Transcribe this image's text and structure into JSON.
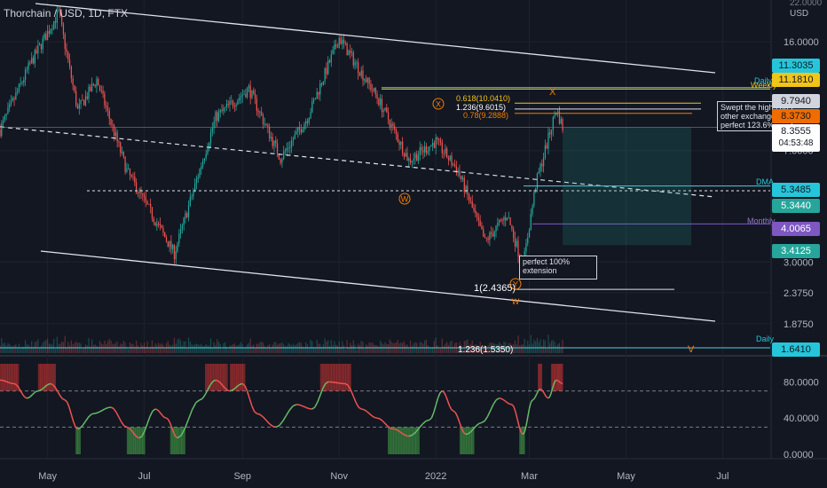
{
  "header": {
    "symbol_line": "Thorchain / USD, 1D, FTX",
    "currency": "USD",
    "axis_top_partial": "22.0000"
  },
  "colors": {
    "bg": "#131722",
    "up": "#26a69a",
    "down": "#ef5350",
    "channel": "#e0e3eb",
    "cyan": "#4dd0e1",
    "orange": "#f57c00",
    "gold": "#f0c419",
    "purple": "#7e57c2",
    "green_osc": "#43a047",
    "red_osc": "#e53935"
  },
  "annotations": {
    "note_swept": [
      "Swept the highs on",
      "other exchanges,",
      "perfect 123.6%"
    ],
    "note_extension": [
      "perfect 100%",
      "extension"
    ],
    "fib_0618": "0.618(10.0410)",
    "fib_1236_top": "1.236(9.6015)",
    "fib_078": "0.78(9.2888)",
    "fib_1": "1(2.4365)",
    "fib_1236_bottom": "1.236(1.5350)",
    "level_daily_top": "Daily",
    "level_weekly": "Weekly",
    "level_dma": "DMA",
    "level_monthly": "Monthly",
    "level_daily_bottom": "Daily",
    "wave_x": "X",
    "wave_w": "W",
    "wave_y": "Y",
    "wave_w2": "W",
    "marker_x": "X",
    "marker_v": "V"
  },
  "price_tags": [
    {
      "value": "11.3035",
      "color": "#26c6da",
      "text": "#131722"
    },
    {
      "value": "11.1810",
      "color": "#f0c419",
      "text": "#131722"
    },
    {
      "value": "9.7940",
      "color": "#d1d4dc",
      "text": "#131722"
    },
    {
      "value": "8.3730",
      "color": "#ef6c00",
      "text": "#131722"
    },
    {
      "value": "8.3555",
      "color": "#ffffff",
      "text": "#131722",
      "sub": "04:53:48"
    },
    {
      "value": "5.3485",
      "color": "#26c6da",
      "text": "#131722"
    },
    {
      "value": "5.3440",
      "color": "#26a69a",
      "text": "#ffffff"
    },
    {
      "value": "4.0065",
      "color": "#7e57c2",
      "text": "#ffffff"
    },
    {
      "value": "3.4125",
      "color": "#26a69a",
      "text": "#ffffff"
    },
    {
      "value": "1.6410",
      "color": "#26c6da",
      "text": "#131722"
    }
  ],
  "chart_data": [
    {
      "type": "candlestick",
      "title": "Thorchain / USD, 1D, FTX",
      "y_scale": "log",
      "ylim": [
        1.5,
        22
      ],
      "y_ticks": [
        "16.0000",
        "7.0000",
        "3.0000",
        "2.3750",
        "1.8750"
      ],
      "x_ticks": [
        "May",
        "Jul",
        "Sep",
        "Nov",
        "2022",
        "Mar",
        "May",
        "Jul"
      ],
      "x_range": [
        "2021-04-01",
        "2022-07-31"
      ],
      "price_path_keypoints": [
        {
          "date": "2021-04-01",
          "close": 8.2
        },
        {
          "date": "2021-04-20",
          "close": 13.5
        },
        {
          "date": "2021-05-08",
          "close": 20.0
        },
        {
          "date": "2021-05-20",
          "close": 9.5
        },
        {
          "date": "2021-06-01",
          "close": 12.0
        },
        {
          "date": "2021-06-20",
          "close": 6.0
        },
        {
          "date": "2021-07-20",
          "close": 3.2
        },
        {
          "date": "2021-08-15",
          "close": 9.0
        },
        {
          "date": "2021-09-05",
          "close": 11.2
        },
        {
          "date": "2021-09-25",
          "close": 6.6
        },
        {
          "date": "2021-10-12",
          "close": 9.0
        },
        {
          "date": "2021-11-01",
          "close": 16.5
        },
        {
          "date": "2021-11-25",
          "close": 10.5
        },
        {
          "date": "2021-12-15",
          "close": 6.5
        },
        {
          "date": "2022-01-01",
          "close": 7.5
        },
        {
          "date": "2022-01-15",
          "close": 6.0
        },
        {
          "date": "2022-02-01",
          "close": 3.5
        },
        {
          "date": "2022-02-15",
          "close": 4.3
        },
        {
          "date": "2022-02-25",
          "close": 2.9
        },
        {
          "date": "2022-03-05",
          "close": 5.4
        },
        {
          "date": "2022-03-18",
          "close": 9.6
        },
        {
          "date": "2022-03-22",
          "close": 8.36
        }
      ],
      "horizontal_levels": [
        {
          "name": "Daily",
          "value": 11.3
        },
        {
          "name": "Weekly",
          "value": 11.18
        },
        {
          "name": "fib 0.618",
          "value": 10.041
        },
        {
          "name": "fib 1.236",
          "value": 9.6015
        },
        {
          "name": "fib 0.78",
          "value": 9.2888
        },
        {
          "name": "DMA",
          "value": 5.3485
        },
        {
          "name": "Monthly",
          "value": 4.0065
        },
        {
          "name": "fib 1",
          "value": 2.4365
        },
        {
          "name": "Daily",
          "value": 1.641
        },
        {
          "name": "fib 1.236",
          "value": 1.535
        }
      ]
    },
    {
      "type": "line",
      "name": "oscillator",
      "ylim": [
        0,
        100
      ],
      "y_ticks": [
        "80.0000",
        "40.0000",
        "0.0000"
      ],
      "overbought": 70,
      "oversold": 30,
      "points": [
        {
          "date": "2021-04-01",
          "value": 82
        },
        {
          "date": "2021-04-10",
          "value": 78
        },
        {
          "date": "2021-04-18",
          "value": 62
        },
        {
          "date": "2021-04-25",
          "value": 70
        },
        {
          "date": "2021-05-03",
          "value": 78
        },
        {
          "date": "2021-05-12",
          "value": 60
        },
        {
          "date": "2021-05-20",
          "value": 28
        },
        {
          "date": "2021-05-30",
          "value": 45
        },
        {
          "date": "2021-06-10",
          "value": 52
        },
        {
          "date": "2021-06-20",
          "value": 30
        },
        {
          "date": "2021-06-28",
          "value": 18
        },
        {
          "date": "2021-07-08",
          "value": 50
        },
        {
          "date": "2021-07-15",
          "value": 40
        },
        {
          "date": "2021-07-22",
          "value": 18
        },
        {
          "date": "2021-08-05",
          "value": 60
        },
        {
          "date": "2021-08-15",
          "value": 82
        },
        {
          "date": "2021-08-24",
          "value": 70
        },
        {
          "date": "2021-09-01",
          "value": 78
        },
        {
          "date": "2021-09-10",
          "value": 45
        },
        {
          "date": "2021-09-22",
          "value": 30
        },
        {
          "date": "2021-10-05",
          "value": 55
        },
        {
          "date": "2021-10-15",
          "value": 50
        },
        {
          "date": "2021-10-25",
          "value": 80
        },
        {
          "date": "2021-11-05",
          "value": 78
        },
        {
          "date": "2021-11-15",
          "value": 50
        },
        {
          "date": "2021-11-25",
          "value": 40
        },
        {
          "date": "2021-12-05",
          "value": 28
        },
        {
          "date": "2021-12-15",
          "value": 20
        },
        {
          "date": "2021-12-28",
          "value": 38
        },
        {
          "date": "2022-01-05",
          "value": 70
        },
        {
          "date": "2022-01-12",
          "value": 48
        },
        {
          "date": "2022-01-20",
          "value": 22
        },
        {
          "date": "2022-01-30",
          "value": 35
        },
        {
          "date": "2022-02-10",
          "value": 62
        },
        {
          "date": "2022-02-18",
          "value": 55
        },
        {
          "date": "2022-02-25",
          "value": 22
        },
        {
          "date": "2022-03-03",
          "value": 60
        },
        {
          "date": "2022-03-08",
          "value": 72
        },
        {
          "date": "2022-03-13",
          "value": 62
        },
        {
          "date": "2022-03-18",
          "value": 82
        },
        {
          "date": "2022-03-22",
          "value": 78
        }
      ]
    }
  ]
}
